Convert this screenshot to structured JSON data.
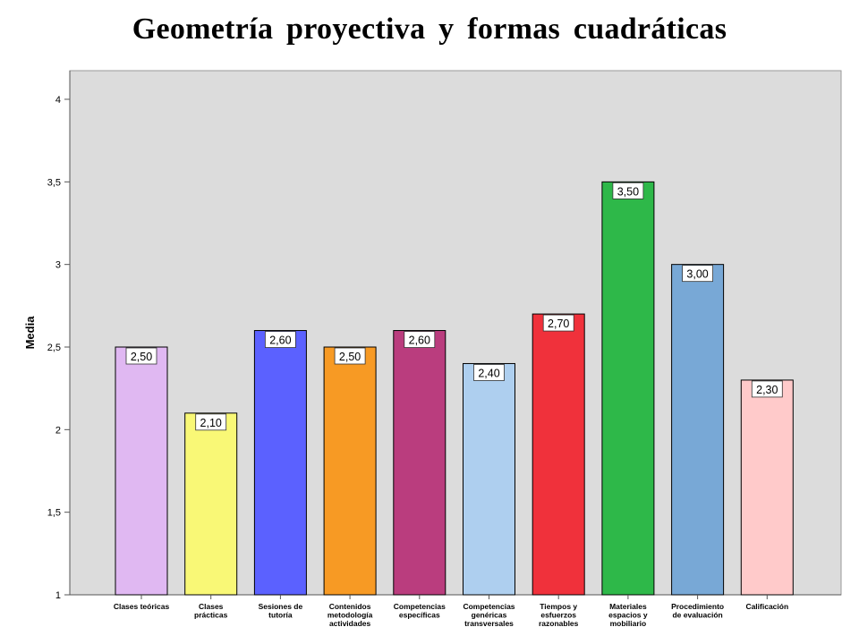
{
  "chart_data": {
    "type": "bar",
    "title": "Geometría proyectiva y formas cuadráticas",
    "xlabel": "",
    "ylabel": "Media",
    "ylim": [
      1,
      4.1
    ],
    "yticks": [
      1,
      1.5,
      2,
      2.5,
      3,
      3.5,
      4
    ],
    "ytick_labels": [
      "1",
      "1,5",
      "2",
      "2,5",
      "3",
      "3,5",
      "4"
    ],
    "grid": false,
    "categories": [
      [
        "Clases teóricas"
      ],
      [
        "Clases",
        "prácticas"
      ],
      [
        "Sesiones de",
        "tutoría"
      ],
      [
        "Contenidos",
        "metodología",
        "actividades"
      ],
      [
        "Competencias",
        "específicas"
      ],
      [
        "Competencias",
        "genéricas",
        "transversales"
      ],
      [
        "Tiempos y",
        "esfuerzos",
        "razonables"
      ],
      [
        "Materiales",
        "espacios y",
        "mobiliario"
      ],
      [
        "Procedimiento",
        "de evaluación"
      ],
      [
        "Calificación"
      ]
    ],
    "values": [
      2.5,
      2.1,
      2.6,
      2.5,
      2.6,
      2.4,
      2.7,
      3.5,
      3.0,
      2.3
    ],
    "value_labels": [
      "2,50",
      "2,10",
      "2,60",
      "2,50",
      "2,60",
      "2,40",
      "2,70",
      "3,50",
      "3,00",
      "2,30"
    ],
    "colors": [
      "#E0B8F2",
      "#F9F876",
      "#5B61FF",
      "#F79A24",
      "#BA3D7E",
      "#AECFEF",
      "#F0313B",
      "#2EB849",
      "#78A8D6",
      "#FFCACA"
    ],
    "plot_background": "#DCDCDC"
  }
}
